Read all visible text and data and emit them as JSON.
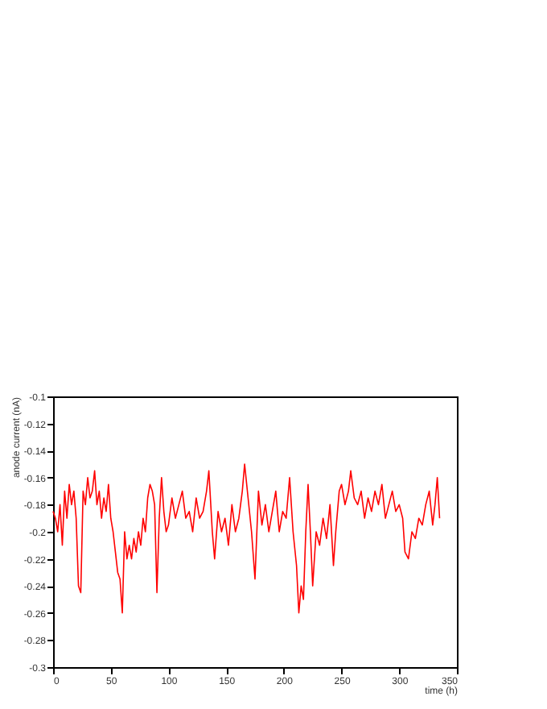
{
  "chart_data": {
    "type": "line",
    "xlabel": "time (h)",
    "ylabel": "anode current (nA)",
    "x": [
      0,
      2,
      4,
      6,
      8,
      10,
      12,
      14,
      16,
      18,
      20,
      22,
      24,
      26,
      28,
      30,
      32,
      34,
      36,
      38,
      40,
      42,
      44,
      46,
      48,
      50,
      52,
      54,
      56,
      58,
      60,
      62,
      64,
      66,
      68,
      70,
      72,
      74,
      76,
      78,
      80,
      82,
      84,
      86,
      88,
      90,
      92,
      94,
      96,
      98,
      100,
      103,
      106,
      109,
      112,
      115,
      118,
      121,
      124,
      127,
      130,
      133,
      135,
      138,
      140,
      143,
      146,
      149,
      152,
      155,
      158,
      161,
      164,
      166,
      169,
      172,
      175,
      178,
      181,
      184,
      187,
      190,
      193,
      196,
      199,
      202,
      205,
      208,
      211,
      213,
      215,
      217,
      219,
      221,
      223,
      225,
      228,
      231,
      234,
      237,
      240,
      243,
      245,
      248,
      250,
      253,
      256,
      258,
      261,
      264,
      267,
      270,
      273,
      276,
      279,
      282,
      285,
      288,
      291,
      294,
      297,
      300,
      303,
      305,
      308,
      311,
      314,
      317,
      320,
      323,
      326,
      329,
      331,
      333,
      335
    ],
    "series": [
      {
        "color": "#ff0000",
        "values": [
          -0.185,
          -0.19,
          -0.2,
          -0.18,
          -0.21,
          -0.17,
          -0.19,
          -0.165,
          -0.18,
          -0.17,
          -0.19,
          -0.24,
          -0.245,
          -0.17,
          -0.18,
          -0.16,
          -0.175,
          -0.17,
          -0.155,
          -0.18,
          -0.17,
          -0.19,
          -0.175,
          -0.185,
          -0.165,
          -0.19,
          -0.2,
          -0.215,
          -0.23,
          -0.235,
          -0.26,
          -0.2,
          -0.22,
          -0.21,
          -0.22,
          -0.205,
          -0.215,
          -0.2,
          -0.21,
          -0.19,
          -0.2,
          -0.175,
          -0.165,
          -0.17,
          -0.18,
          -0.245,
          -0.19,
          -0.16,
          -0.185,
          -0.2,
          -0.195,
          -0.175,
          -0.19,
          -0.18,
          -0.17,
          -0.19,
          -0.185,
          -0.2,
          -0.175,
          -0.19,
          -0.185,
          -0.17,
          -0.155,
          -0.2,
          -0.22,
          -0.185,
          -0.2,
          -0.19,
          -0.21,
          -0.18,
          -0.2,
          -0.19,
          -0.17,
          -0.15,
          -0.175,
          -0.2,
          -0.235,
          -0.17,
          -0.195,
          -0.18,
          -0.2,
          -0.185,
          -0.17,
          -0.2,
          -0.185,
          -0.19,
          -0.16,
          -0.2,
          -0.225,
          -0.26,
          -0.24,
          -0.25,
          -0.2,
          -0.165,
          -0.2,
          -0.24,
          -0.2,
          -0.21,
          -0.19,
          -0.205,
          -0.18,
          -0.225,
          -0.2,
          -0.17,
          -0.165,
          -0.18,
          -0.17,
          -0.155,
          -0.175,
          -0.18,
          -0.17,
          -0.19,
          -0.175,
          -0.185,
          -0.17,
          -0.18,
          -0.165,
          -0.19,
          -0.18,
          -0.17,
          -0.185,
          -0.18,
          -0.19,
          -0.215,
          -0.22,
          -0.2,
          -0.205,
          -0.19,
          -0.195,
          -0.18,
          -0.17,
          -0.195,
          -0.18,
          -0.16,
          -0.19
        ]
      }
    ],
    "xlim": [
      0,
      350
    ],
    "xticks": [
      0,
      50,
      100,
      150,
      200,
      250,
      300,
      350
    ],
    "ylim": [
      -0.3,
      -0.1
    ],
    "yticks": [
      -0.3,
      -0.28,
      -0.26,
      -0.24,
      -0.22,
      -0.2,
      -0.18,
      -0.16,
      -0.14,
      -0.12,
      -0.1
    ],
    "grid": false,
    "legend": false,
    "marker": "none",
    "line_style": "solid"
  }
}
